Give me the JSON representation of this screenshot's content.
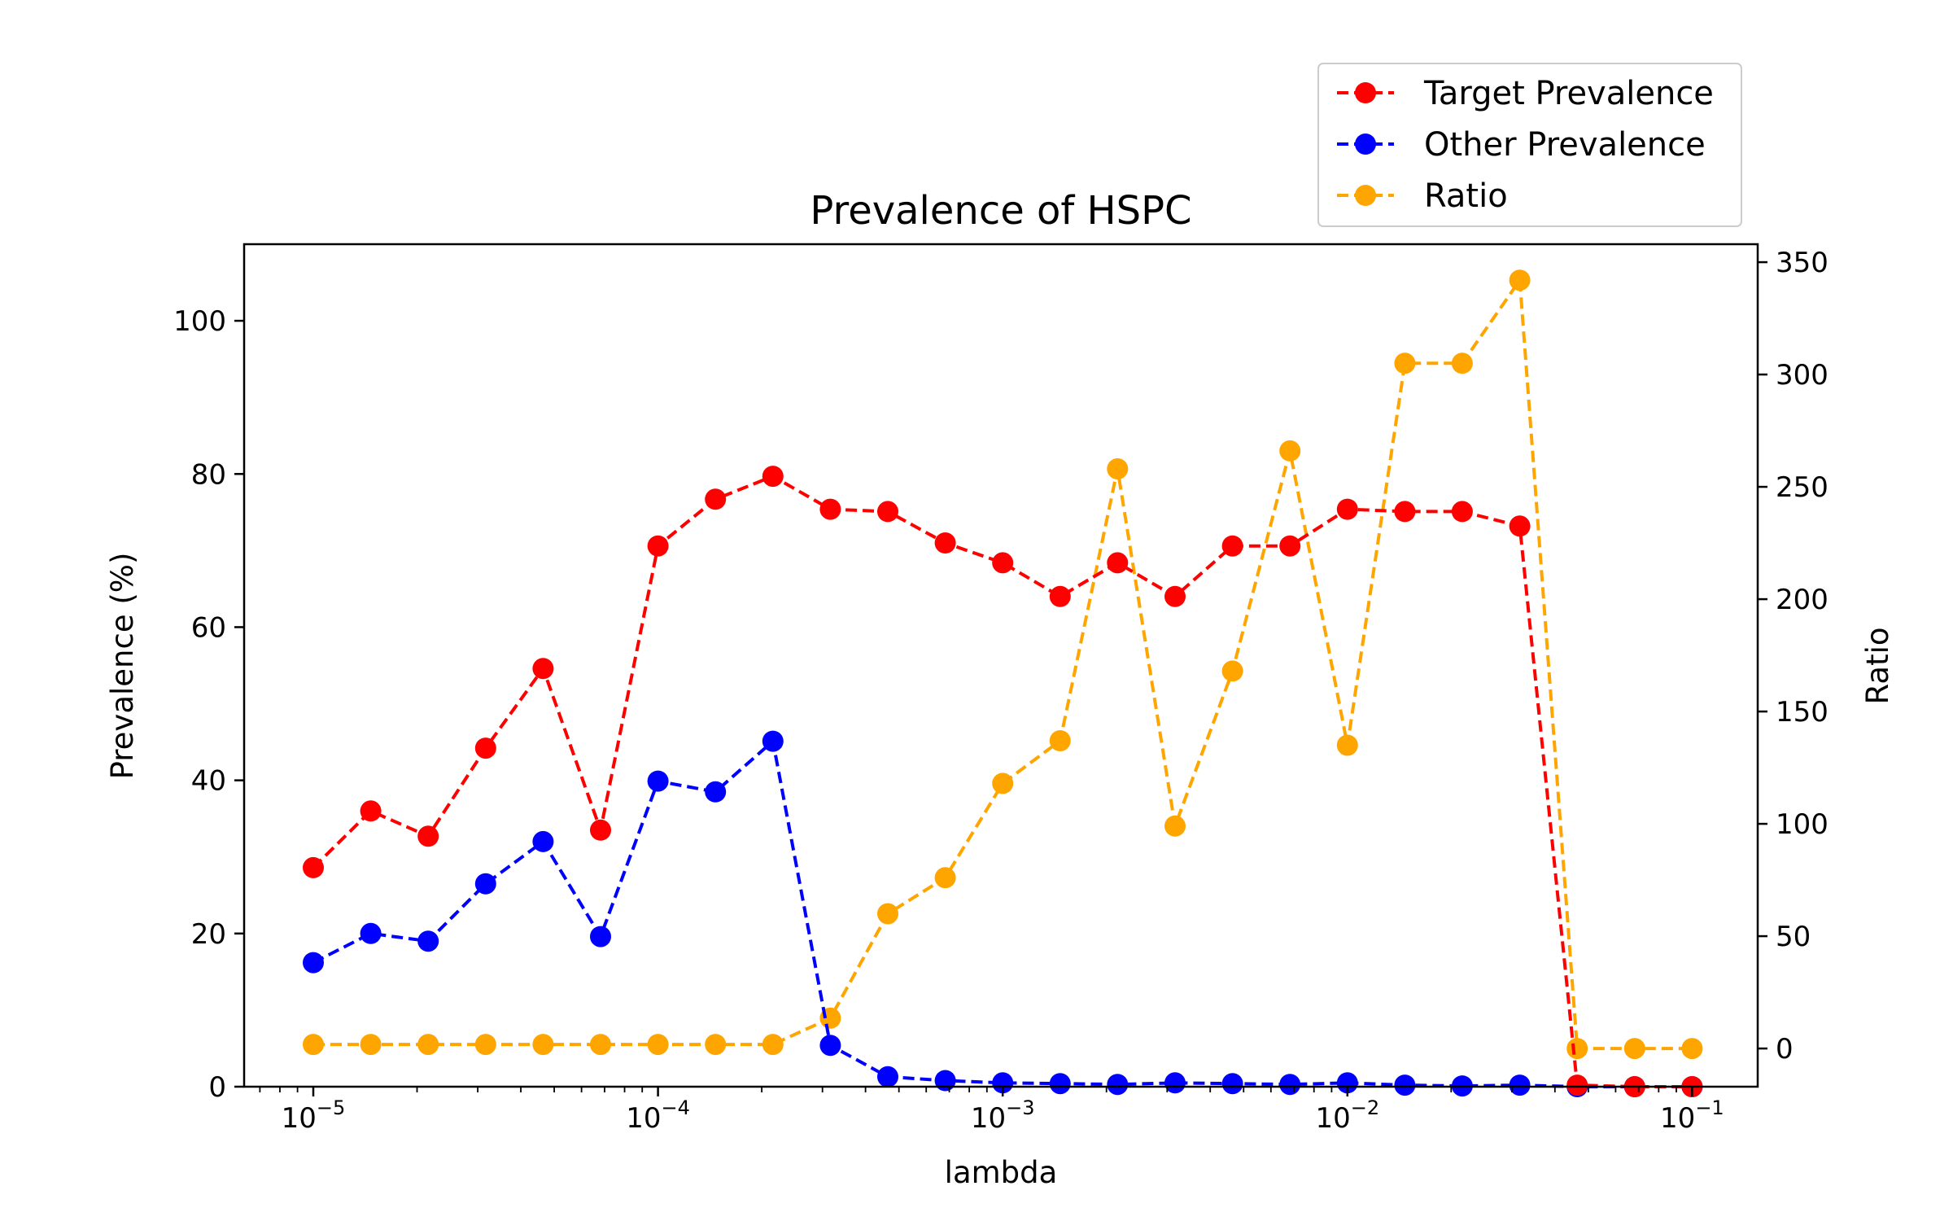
{
  "chart_data": {
    "type": "line",
    "title": "Prevalence of HSPC",
    "xlabel": "lambda",
    "ylabel": "Prevalence (%)",
    "y2label": "Ratio",
    "xscale": "log",
    "xlim": [
      6.3e-06,
      0.155
    ],
    "ylim": [
      0,
      110
    ],
    "y2lim": [
      -17,
      358
    ],
    "xticks": [
      "10^-5",
      "10^-4",
      "10^-3",
      "10^-2",
      "10^-1"
    ],
    "yticks": [
      0,
      20,
      40,
      60,
      80,
      100
    ],
    "y2ticks": [
      0,
      50,
      100,
      150,
      200,
      250,
      300,
      350
    ],
    "grid": false,
    "legend_position": "top-right",
    "x": [
      1e-05,
      1.468e-05,
      2.154e-05,
      3.162e-05,
      4.642e-05,
      6.813e-05,
      0.0001,
      0.0001468,
      0.0002154,
      0.0003162,
      0.0004642,
      0.0006813,
      0.001,
      0.001468,
      0.002154,
      0.003162,
      0.004642,
      0.006813,
      0.01,
      0.01468,
      0.02154,
      0.03162,
      0.04642,
      0.06813,
      0.1
    ],
    "series": [
      {
        "name": "Target Prevalence",
        "color": "#ff0000",
        "axis": "left",
        "values": [
          28.6,
          36.0,
          32.7,
          44.2,
          54.6,
          33.5,
          70.6,
          76.7,
          79.7,
          75.4,
          75.1,
          71.0,
          68.4,
          64.0,
          68.4,
          64.0,
          70.6,
          70.6,
          75.4,
          75.1,
          75.1,
          73.2,
          0.2,
          0.0,
          0.0
        ]
      },
      {
        "name": "Other Prevalence",
        "color": "#0000ff",
        "axis": "left",
        "values": [
          16.2,
          20.0,
          19.0,
          26.5,
          32.0,
          19.6,
          39.9,
          38.5,
          45.1,
          5.4,
          1.3,
          0.8,
          0.5,
          0.4,
          0.3,
          0.5,
          0.4,
          0.3,
          0.5,
          0.2,
          0.1,
          0.2,
          0.0,
          0.0,
          0.0
        ]
      },
      {
        "name": "Ratio",
        "color": "#ffa500",
        "axis": "right",
        "values": [
          1.8,
          1.8,
          1.8,
          1.8,
          1.8,
          1.8,
          1.8,
          1.8,
          1.8,
          13.5,
          60.0,
          76.0,
          118.0,
          137.0,
          258.0,
          99.0,
          168.0,
          266.0,
          135.0,
          305.0,
          305.0,
          342.0,
          0.0,
          0.0,
          0.0
        ]
      }
    ]
  }
}
